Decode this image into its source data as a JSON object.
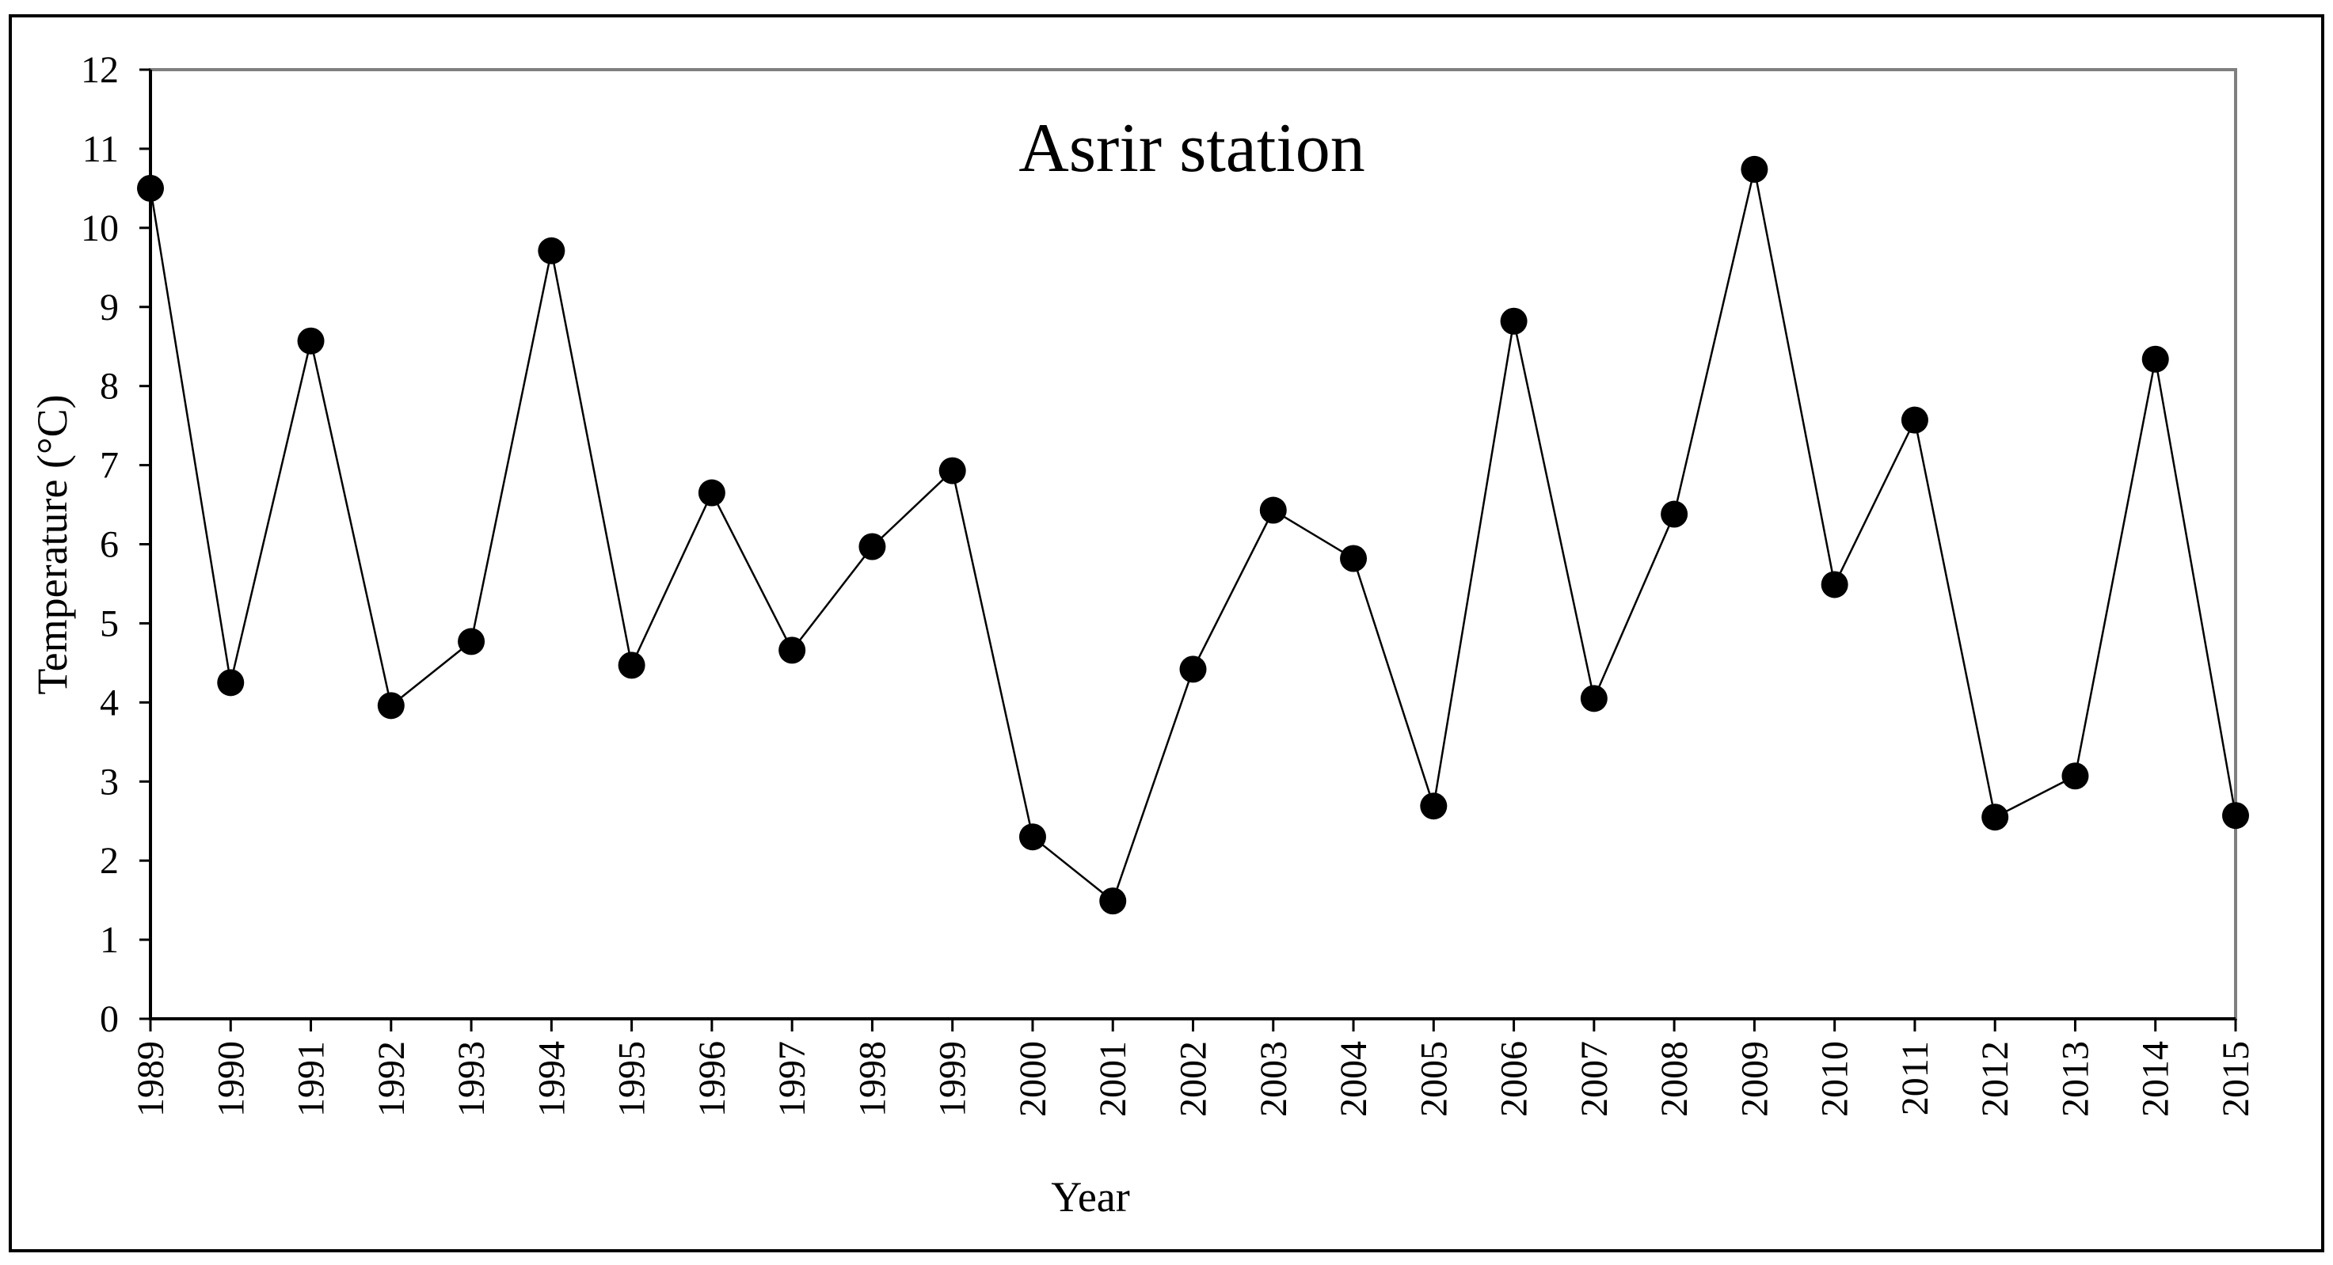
{
  "chart_data": {
    "type": "line",
    "title": "Asrir station",
    "xlabel": "Year",
    "ylabel": "Temperature (°C)",
    "ylim": [
      0,
      12
    ],
    "yticks": [
      0,
      1,
      2,
      3,
      4,
      5,
      6,
      7,
      8,
      9,
      10,
      11,
      12
    ],
    "grid": false,
    "legend": "none",
    "categories": [
      "1989",
      "1990",
      "1991",
      "1992",
      "1993",
      "1994",
      "1995",
      "1996",
      "1997",
      "1998",
      "1999",
      "2000",
      "2001",
      "2002",
      "2003",
      "2004",
      "2005",
      "2006",
      "2007",
      "2008",
      "2009",
      "2010",
      "2011",
      "2012",
      "2013",
      "2014",
      "2015"
    ],
    "series": [
      {
        "values": [
          10.5,
          4.25,
          8.57,
          3.96,
          4.77,
          9.71,
          4.47,
          6.65,
          4.66,
          5.97,
          6.93,
          2.3,
          1.49,
          4.42,
          6.43,
          5.82,
          2.69,
          8.82,
          4.05,
          6.38,
          10.74,
          5.49,
          7.57,
          2.55,
          3.07,
          8.34,
          2.57
        ],
        "color": "#000000"
      }
    ]
  }
}
